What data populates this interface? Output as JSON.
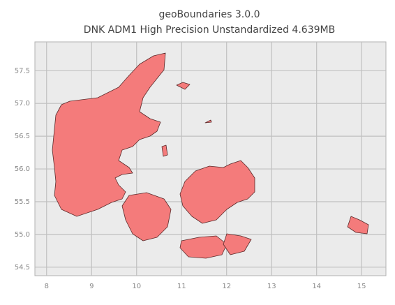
{
  "chart_data": {
    "type": "map",
    "title": "geoBoundaries 3.0.0",
    "subtitle": "DNK ADM1 High Precision Unstandardized 4.639MB",
    "xlim": [
      7.74,
      15.54
    ],
    "ylim": [
      54.37,
      57.94
    ],
    "xticks": [
      8,
      9,
      10,
      11,
      12,
      13,
      14,
      15
    ],
    "yticks": [
      54.5,
      {
        "value": 55,
        "label": "55.0"
      },
      55.5,
      {
        "value": 56,
        "label": "56.0"
      },
      56.5,
      {
        "value": 57,
        "label": "57.0"
      },
      57.5
    ],
    "grid": true,
    "color": "#f47b7b"
  }
}
